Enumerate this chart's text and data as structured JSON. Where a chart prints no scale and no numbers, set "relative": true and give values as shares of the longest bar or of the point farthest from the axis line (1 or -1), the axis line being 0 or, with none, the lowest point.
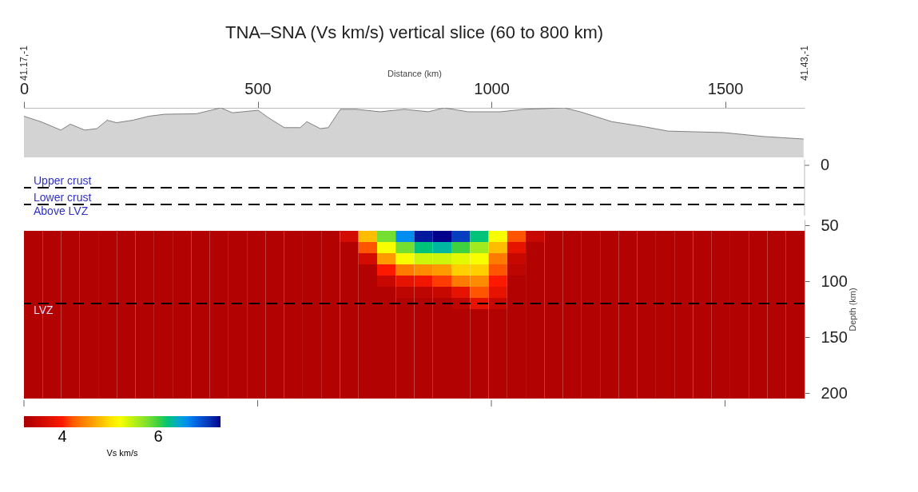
{
  "chart_data": [
    {
      "type": "area",
      "title": "TNA–SNA (Vs km/s) vertical slice (60 to 800 km)",
      "xlabel": "Distance (km)",
      "relative": true,
      "color": "#c0c0c0",
      "tick_labels": "x",
      "xlim": [
        0,
        1670
      ],
      "xticks": [
        0,
        500,
        1000,
        1500
      ],
      "x": [
        0,
        36,
        79,
        99,
        130,
        156,
        178,
        198,
        233,
        267,
        301,
        369,
        421,
        446,
        501,
        523,
        557,
        591,
        605,
        634,
        651,
        677,
        711,
        762,
        814,
        865,
        899,
        950,
        1019,
        1070,
        1156,
        1190,
        1258,
        1326,
        1378,
        1497,
        1583,
        1668
      ],
      "values": [
        0.83,
        0.72,
        0.55,
        0.67,
        0.55,
        0.58,
        0.75,
        0.7,
        0.75,
        0.83,
        0.87,
        0.88,
        1,
        0.9,
        0.95,
        0.8,
        0.6,
        0.6,
        0.72,
        0.58,
        0.6,
        0.97,
        0.97,
        0.92,
        0.97,
        0.92,
        1,
        0.92,
        0.92,
        0.97,
        1,
        0.92,
        0.72,
        0.62,
        0.53,
        0.5,
        0.42,
        0.37
      ],
      "annotations": [
        "41.17,-1",
        "41.43,-1"
      ]
    },
    {
      "type": "other",
      "annotations": [
        "Upper crust",
        "Lower crust",
        "Above LVZ",
        "0"
      ]
    },
    {
      "type": "heatmap",
      "ylabel": "Depth (km)",
      "clabel": "Vs km/s",
      "tick_labels": "y",
      "clim": [
        3.2,
        7.3
      ],
      "cticks": [
        4,
        6
      ],
      "categories": [
        null,
        null,
        null,
        null,
        null,
        null,
        null,
        null,
        null,
        null,
        null,
        null,
        null,
        null,
        null,
        null,
        null,
        null,
        null,
        null,
        null,
        null,
        null,
        null,
        null,
        null,
        null,
        null,
        null,
        null,
        null,
        null,
        null,
        null,
        null,
        null,
        null,
        null,
        null,
        null,
        null,
        null
      ],
      "y_categories": [
        "50",
        null,
        null,
        null,
        null,
        "100",
        null,
        null,
        null,
        null,
        "150",
        null,
        null,
        null,
        null,
        "200"
      ],
      "cells": [
        [
          null,
          null,
          null,
          null,
          null,
          null,
          null,
          null,
          null,
          null,
          null,
          null,
          null,
          null,
          null,
          null,
          null,
          null,
          null,
          null,
          null,
          null,
          null,
          null,
          null,
          null,
          null,
          null,
          null,
          null,
          null,
          null,
          null,
          null,
          null,
          null,
          null,
          null,
          null,
          null,
          null,
          null
        ],
        [
          3.3,
          3.3,
          3.3,
          3.3,
          3.3,
          3.3,
          3.3,
          3.3,
          3.3,
          3.3,
          3.3,
          3.3,
          3.3,
          3.3,
          3.3,
          3.3,
          3.3,
          3.6,
          4.8,
          5.8,
          6.6,
          7.2,
          7.3,
          7.0,
          6.2,
          5.2,
          4.2,
          3.5,
          3.3,
          3.3,
          3.3,
          3.3,
          3.3,
          3.3,
          3.3,
          3.3,
          3.3,
          3.3,
          3.3,
          3.3,
          3.3,
          3.3
        ],
        [
          3.3,
          3.3,
          3.3,
          3.3,
          3.3,
          3.3,
          3.3,
          3.3,
          3.3,
          3.3,
          3.3,
          3.3,
          3.3,
          3.3,
          3.3,
          3.3,
          3.3,
          3.3,
          4.2,
          5.2,
          5.8,
          6.2,
          6.3,
          6.0,
          5.6,
          4.8,
          3.8,
          3.3,
          3.3,
          3.3,
          3.3,
          3.3,
          3.3,
          3.3,
          3.3,
          3.3,
          3.3,
          3.3,
          3.3,
          3.3,
          3.3,
          3.3
        ],
        [
          3.3,
          3.3,
          3.3,
          3.3,
          3.3,
          3.3,
          3.3,
          3.3,
          3.3,
          3.3,
          3.3,
          3.3,
          3.3,
          3.3,
          3.3,
          3.3,
          3.3,
          3.3,
          3.6,
          4.6,
          5.2,
          5.4,
          5.4,
          5.3,
          5.2,
          4.4,
          3.5,
          3.3,
          3.3,
          3.3,
          3.3,
          3.3,
          3.3,
          3.3,
          3.3,
          3.3,
          3.3,
          3.3,
          3.3,
          3.3,
          3.3,
          3.3
        ],
        [
          3.3,
          3.3,
          3.3,
          3.3,
          3.3,
          3.3,
          3.3,
          3.3,
          3.3,
          3.3,
          3.3,
          3.3,
          3.3,
          3.3,
          3.3,
          3.3,
          3.3,
          3.3,
          3.3,
          4.0,
          4.4,
          4.5,
          4.6,
          4.9,
          4.9,
          4.2,
          3.4,
          3.3,
          3.3,
          3.3,
          3.3,
          3.3,
          3.3,
          3.3,
          3.3,
          3.3,
          3.3,
          3.3,
          3.3,
          3.3,
          3.3,
          3.3
        ],
        [
          3.3,
          3.3,
          3.3,
          3.3,
          3.3,
          3.3,
          3.3,
          3.3,
          3.3,
          3.3,
          3.3,
          3.3,
          3.3,
          3.3,
          3.3,
          3.3,
          3.3,
          3.3,
          3.3,
          3.5,
          3.8,
          3.9,
          4.1,
          4.4,
          4.5,
          4.0,
          3.3,
          3.3,
          3.3,
          3.3,
          3.3,
          3.3,
          3.3,
          3.3,
          3.3,
          3.3,
          3.3,
          3.3,
          3.3,
          3.3,
          3.3,
          3.3
        ],
        [
          3.3,
          3.3,
          3.3,
          3.3,
          3.3,
          3.3,
          3.3,
          3.3,
          3.3,
          3.3,
          3.3,
          3.3,
          3.3,
          3.3,
          3.3,
          3.3,
          3.3,
          3.3,
          3.3,
          3.3,
          3.4,
          3.4,
          3.5,
          3.8,
          4.2,
          3.8,
          3.3,
          3.3,
          3.3,
          3.3,
          3.3,
          3.3,
          3.3,
          3.3,
          3.3,
          3.3,
          3.3,
          3.3,
          3.3,
          3.3,
          3.3,
          3.3
        ],
        [
          3.3,
          3.3,
          3.3,
          3.3,
          3.3,
          3.3,
          3.3,
          3.3,
          3.3,
          3.3,
          3.3,
          3.3,
          3.3,
          3.3,
          3.3,
          3.3,
          3.3,
          3.3,
          3.3,
          3.3,
          3.3,
          3.3,
          3.3,
          3.4,
          3.8,
          3.5,
          3.3,
          3.3,
          3.3,
          3.3,
          3.3,
          3.3,
          3.3,
          3.3,
          3.3,
          3.3,
          3.3,
          3.3,
          3.3,
          3.3,
          3.3,
          3.3
        ],
        [
          3.3,
          3.3,
          3.3,
          3.3,
          3.3,
          3.3,
          3.3,
          3.3,
          3.3,
          3.3,
          3.3,
          3.3,
          3.3,
          3.3,
          3.3,
          3.3,
          3.3,
          3.3,
          3.3,
          3.3,
          3.3,
          3.3,
          3.3,
          3.3,
          3.3,
          3.3,
          3.3,
          3.3,
          3.3,
          3.3,
          3.3,
          3.3,
          3.3,
          3.3,
          3.3,
          3.3,
          3.3,
          3.3,
          3.3,
          3.3,
          3.3,
          3.3
        ],
        [
          3.3,
          3.3,
          3.3,
          3.3,
          3.3,
          3.3,
          3.3,
          3.3,
          3.3,
          3.3,
          3.3,
          3.3,
          3.3,
          3.3,
          3.3,
          3.3,
          3.3,
          3.3,
          3.3,
          3.3,
          3.3,
          3.3,
          3.3,
          3.3,
          3.3,
          3.3,
          3.3,
          3.3,
          3.3,
          3.3,
          3.3,
          3.3,
          3.3,
          3.3,
          3.3,
          3.3,
          3.3,
          3.3,
          3.3,
          3.3,
          3.3,
          3.3
        ],
        [
          3.3,
          3.3,
          3.3,
          3.3,
          3.3,
          3.3,
          3.3,
          3.3,
          3.3,
          3.3,
          3.3,
          3.3,
          3.3,
          3.3,
          3.3,
          3.3,
          3.3,
          3.3,
          3.3,
          3.3,
          3.3,
          3.3,
          3.3,
          3.3,
          3.3,
          3.3,
          3.3,
          3.3,
          3.3,
          3.3,
          3.3,
          3.3,
          3.3,
          3.3,
          3.3,
          3.3,
          3.3,
          3.3,
          3.3,
          3.3,
          3.3,
          3.3
        ],
        [
          3.3,
          3.3,
          3.3,
          3.3,
          3.3,
          3.3,
          3.3,
          3.3,
          3.3,
          3.3,
          3.3,
          3.3,
          3.3,
          3.3,
          3.3,
          3.3,
          3.3,
          3.3,
          3.3,
          3.3,
          3.3,
          3.3,
          3.3,
          3.3,
          3.3,
          3.3,
          3.3,
          3.3,
          3.3,
          3.3,
          3.3,
          3.3,
          3.3,
          3.3,
          3.3,
          3.3,
          3.3,
          3.3,
          3.3,
          3.3,
          3.3,
          3.3
        ],
        [
          3.3,
          3.3,
          3.3,
          3.3,
          3.3,
          3.3,
          3.3,
          3.3,
          3.3,
          3.3,
          3.3,
          3.3,
          3.3,
          3.3,
          3.3,
          3.3,
          3.3,
          3.3,
          3.3,
          3.3,
          3.3,
          3.3,
          3.3,
          3.3,
          3.3,
          3.3,
          3.3,
          3.3,
          3.3,
          3.3,
          3.3,
          3.3,
          3.3,
          3.3,
          3.3,
          3.3,
          3.3,
          3.3,
          3.3,
          3.3,
          3.3,
          3.3
        ],
        [
          3.3,
          3.3,
          3.3,
          3.3,
          3.3,
          3.3,
          3.3,
          3.3,
          3.3,
          3.3,
          3.3,
          3.3,
          3.3,
          3.3,
          3.3,
          3.3,
          3.3,
          3.3,
          3.3,
          3.3,
          3.3,
          3.3,
          3.3,
          3.3,
          3.3,
          3.3,
          3.3,
          3.3,
          3.3,
          3.3,
          3.3,
          3.3,
          3.3,
          3.3,
          3.3,
          3.3,
          3.3,
          3.3,
          3.3,
          3.3,
          3.3,
          3.3
        ],
        [
          3.3,
          3.3,
          3.3,
          3.3,
          3.3,
          3.3,
          3.3,
          3.3,
          3.3,
          3.3,
          3.3,
          3.3,
          3.3,
          3.3,
          3.3,
          3.3,
          3.3,
          3.3,
          3.3,
          3.3,
          3.3,
          3.3,
          3.3,
          3.3,
          3.3,
          3.3,
          3.3,
          3.3,
          3.3,
          3.3,
          3.3,
          3.3,
          3.3,
          3.3,
          3.3,
          3.3,
          3.3,
          3.3,
          3.3,
          3.3,
          3.3,
          3.3
        ],
        [
          3.3,
          3.3,
          3.3,
          3.3,
          3.3,
          3.3,
          3.3,
          3.3,
          3.3,
          3.3,
          3.3,
          3.3,
          3.3,
          3.3,
          3.3,
          3.3,
          3.3,
          3.3,
          3.3,
          3.3,
          3.3,
          3.3,
          3.3,
          3.3,
          3.3,
          3.3,
          3.3,
          3.3,
          3.3,
          3.3,
          3.3,
          3.3,
          3.3,
          3.3,
          3.3,
          3.3,
          3.3,
          3.3,
          3.3,
          3.3,
          3.3,
          3.3
        ]
      ],
      "annotations": [
        "LVZ"
      ]
    }
  ]
}
